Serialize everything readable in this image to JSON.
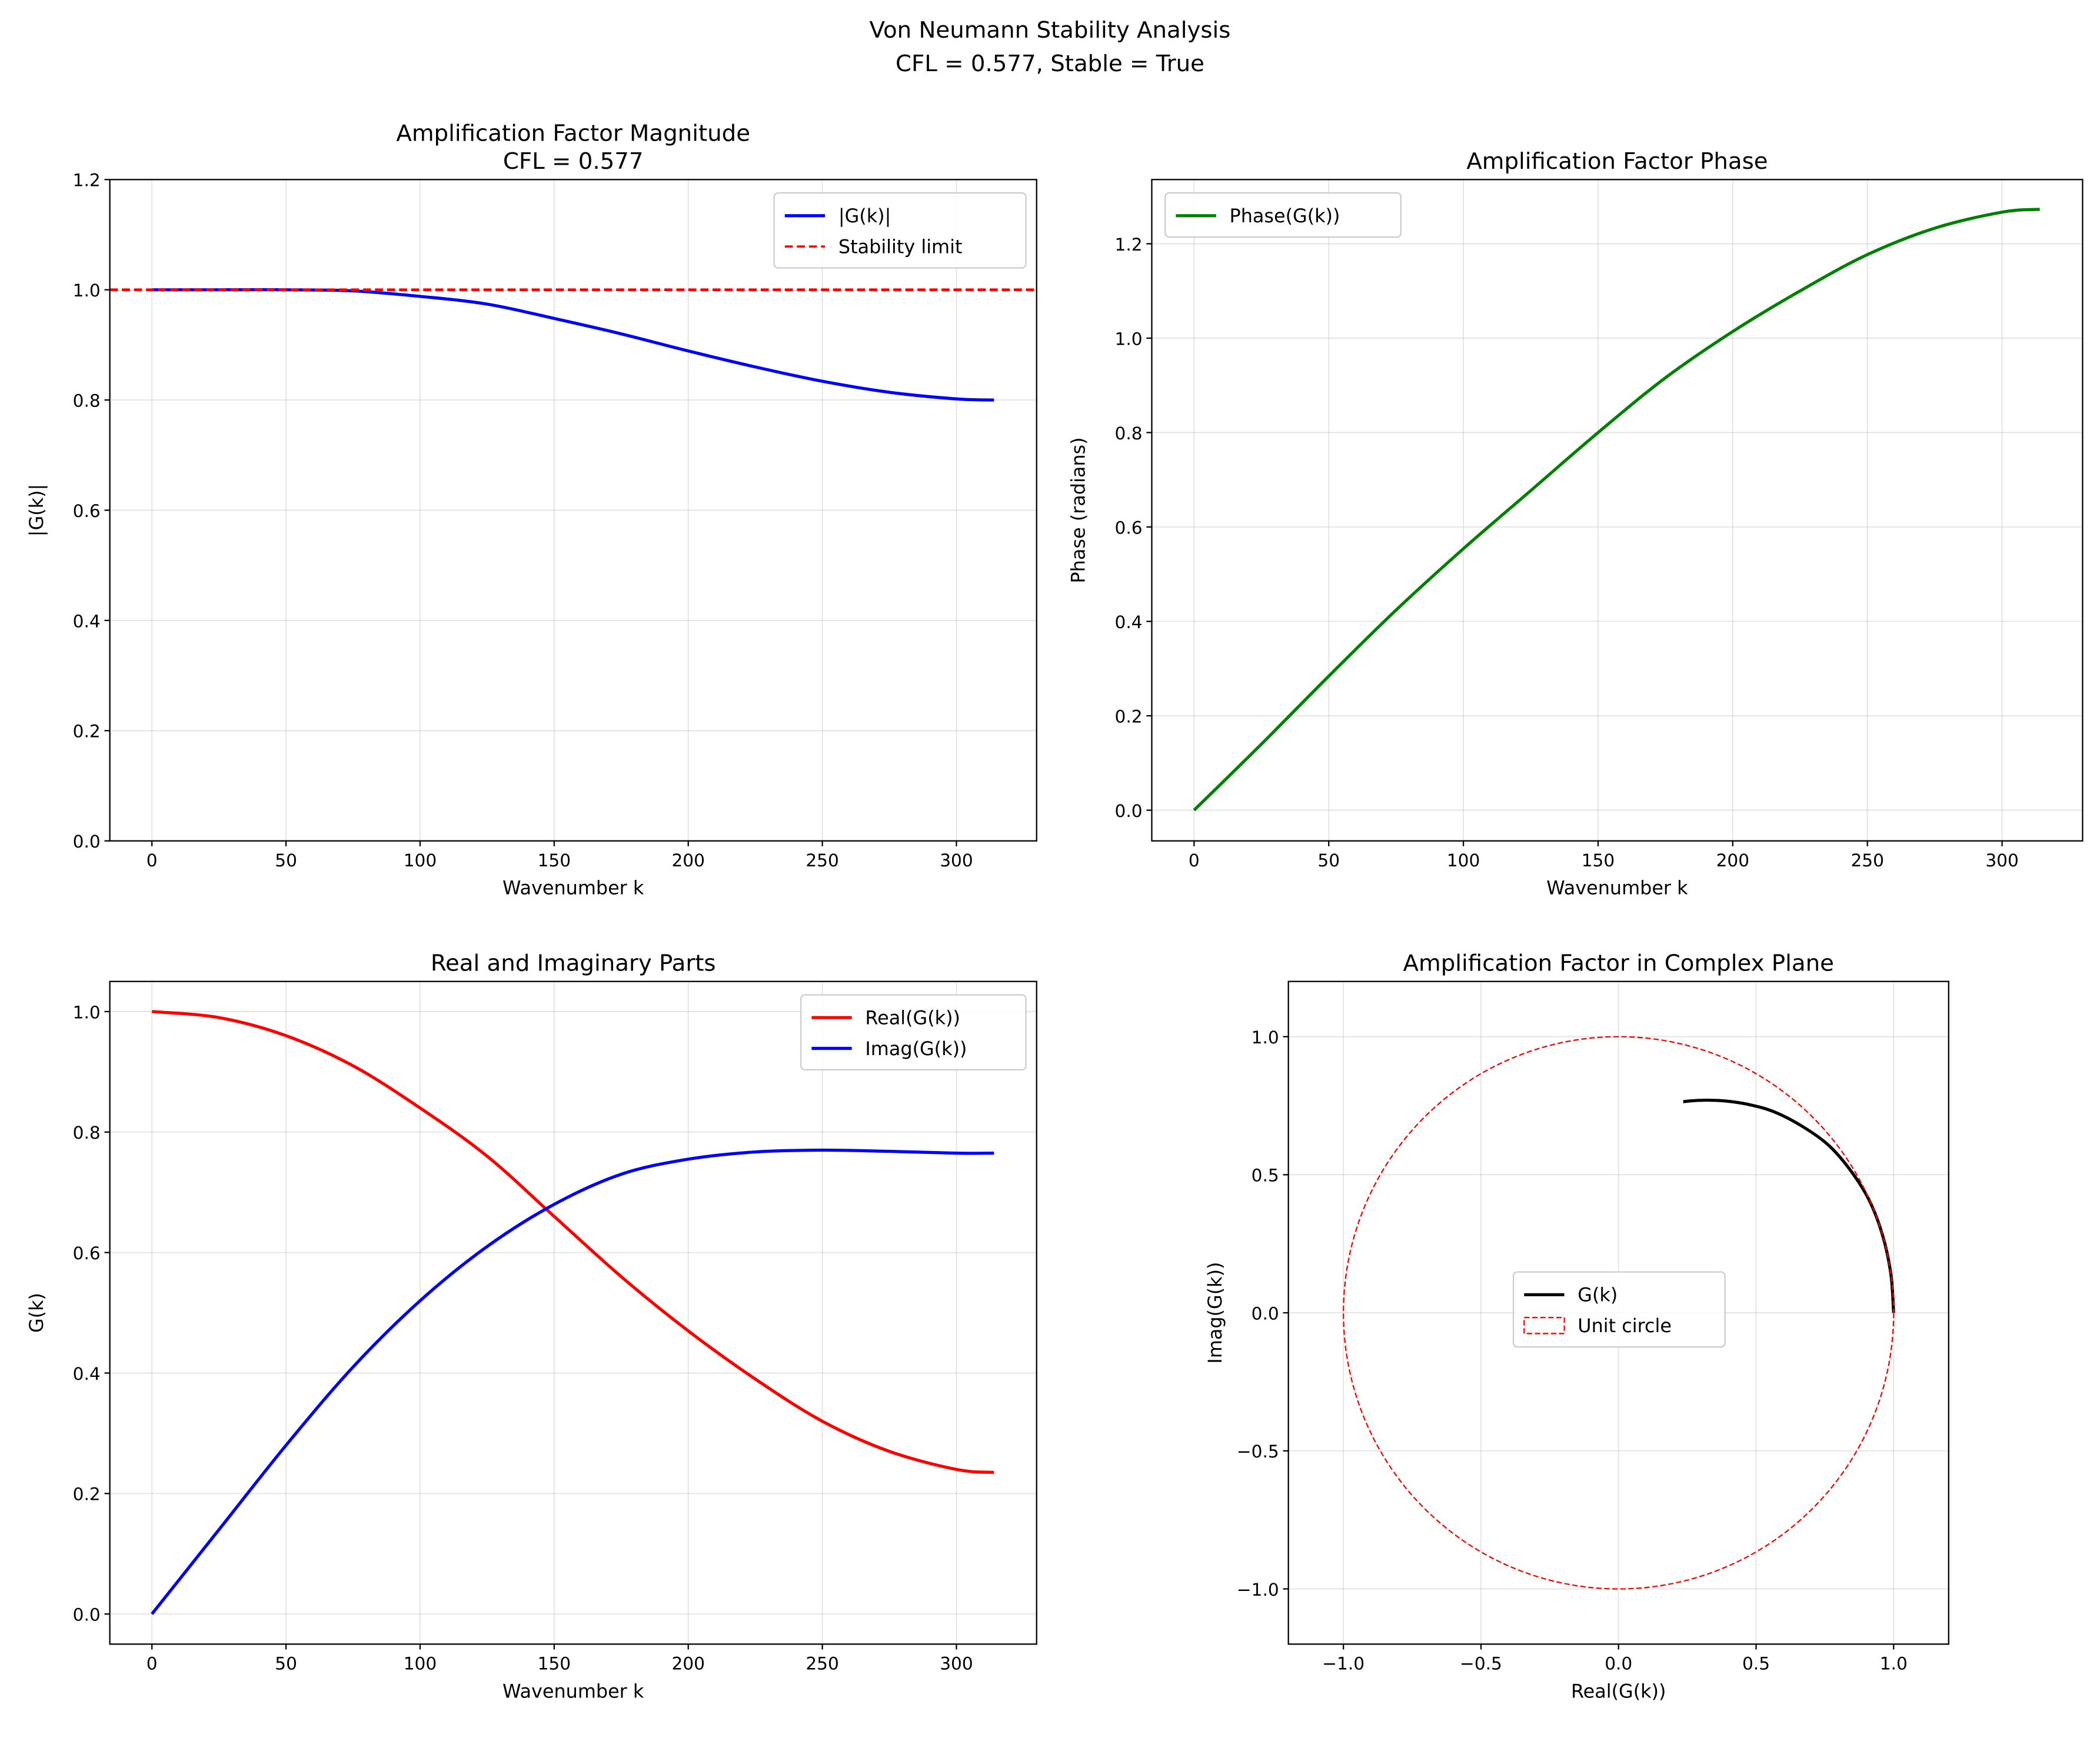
{
  "suptitle": [
    "Von Neumann Stability Analysis",
    "CFL = 0.577, Stable = True"
  ],
  "chart_data": [
    {
      "type": "line",
      "title": [
        "Amplification Factor Magnitude",
        "CFL = 0.577"
      ],
      "xlabel": "Wavenumber k",
      "ylabel": "|G(k)|",
      "xlim": [
        -15.7,
        329.9
      ],
      "ylim": [
        0,
        1.2
      ],
      "xticks": [
        0,
        50,
        100,
        150,
        200,
        250,
        300
      ],
      "yticks": [
        0.0,
        0.2,
        0.4,
        0.6,
        0.8,
        1.0,
        1.2
      ],
      "grid": true,
      "legend": "top-right",
      "series": [
        {
          "name": "|G(k)|",
          "color": "#0000ff",
          "style": "solid",
          "x": [
            0,
            25,
            50,
            75,
            100,
            125,
            150,
            175,
            200,
            225,
            250,
            275,
            300,
            314
          ],
          "y": [
            1.0,
            1.0,
            1.0,
            0.998,
            0.988,
            0.974,
            0.948,
            0.92,
            0.889,
            0.86,
            0.834,
            0.814,
            0.802,
            0.8
          ]
        },
        {
          "name": "Stability limit",
          "color": "#ff0000",
          "style": "dashed",
          "hline": 1.0
        }
      ]
    },
    {
      "type": "line",
      "title": [
        "Amplification Factor Phase"
      ],
      "xlabel": "Wavenumber k",
      "ylabel": "Phase (radians)",
      "xlim": [
        -15.7,
        329.9
      ],
      "ylim": [
        -0.065,
        1.336
      ],
      "xticks": [
        0,
        50,
        100,
        150,
        200,
        250,
        300
      ],
      "yticks": [
        0.0,
        0.2,
        0.4,
        0.6,
        0.8,
        1.0,
        1.2
      ],
      "grid": true,
      "legend": "top-left",
      "series": [
        {
          "name": "Phase(G(k))",
          "color": "#008000",
          "style": "solid",
          "x": [
            0,
            25,
            50,
            75,
            100,
            125,
            150,
            175,
            200,
            225,
            250,
            275,
            300,
            314
          ],
          "y": [
            0,
            0.14,
            0.284,
            0.424,
            0.554,
            0.677,
            0.8,
            0.916,
            1.014,
            1.1,
            1.177,
            1.233,
            1.267,
            1.273
          ]
        }
      ]
    },
    {
      "type": "line",
      "title": [
        "Real and Imaginary Parts"
      ],
      "xlabel": "Wavenumber k",
      "ylabel": "G(k)",
      "xlim": [
        -15.7,
        329.9
      ],
      "ylim": [
        -0.05,
        1.05
      ],
      "xticks": [
        0,
        50,
        100,
        150,
        200,
        250,
        300
      ],
      "yticks": [
        0.0,
        0.2,
        0.4,
        0.6,
        0.8,
        1.0
      ],
      "grid": true,
      "legend": "top-right",
      "series": [
        {
          "name": "Real(G(k))",
          "color": "#ff0000",
          "style": "solid",
          "x": [
            0,
            25,
            50,
            75,
            100,
            125,
            150,
            175,
            200,
            225,
            250,
            275,
            300,
            314
          ],
          "y": [
            1.0,
            0.99,
            0.96,
            0.91,
            0.84,
            0.76,
            0.66,
            0.56,
            0.47,
            0.39,
            0.32,
            0.27,
            0.24,
            0.235
          ]
        },
        {
          "name": "Imag(G(k))",
          "color": "#0000ff",
          "style": "solid",
          "x": [
            0,
            25,
            50,
            75,
            100,
            125,
            150,
            175,
            200,
            225,
            250,
            275,
            300,
            314
          ],
          "y": [
            0,
            0.14,
            0.28,
            0.41,
            0.52,
            0.61,
            0.68,
            0.73,
            0.755,
            0.767,
            0.77,
            0.768,
            0.765,
            0.765
          ]
        }
      ]
    },
    {
      "type": "line",
      "title": [
        "Amplification Factor in Complex Plane"
      ],
      "xlabel": "Real(G(k))",
      "ylabel": "Imag(G(k))",
      "xlim": [
        -1.2,
        1.2
      ],
      "ylim": [
        -1.2,
        1.2
      ],
      "xticks": [
        -1.0,
        -0.5,
        0.0,
        0.5,
        1.0
      ],
      "yticks": [
        -1.0,
        -0.5,
        0.0,
        0.5,
        1.0
      ],
      "xticklabels": [
        "−1.0",
        "−0.5",
        "0.0",
        "0.5",
        "1.0"
      ],
      "yticklabels": [
        "−1.0",
        "−0.5",
        "0.0",
        "0.5",
        "1.0"
      ],
      "grid": true,
      "legend": "center",
      "series": [
        {
          "name": "G(k)",
          "color": "#000000",
          "style": "solid",
          "x": [
            1.0,
            0.99,
            0.96,
            0.91,
            0.84,
            0.76,
            0.66,
            0.56,
            0.47,
            0.39,
            0.32,
            0.27,
            0.24,
            0.235
          ],
          "y": [
            0,
            0.14,
            0.28,
            0.41,
            0.52,
            0.61,
            0.68,
            0.73,
            0.755,
            0.767,
            0.77,
            0.768,
            0.765,
            0.765
          ]
        },
        {
          "name": "Unit circle",
          "color": "#ff0000",
          "style": "dashed",
          "circle": 1.0
        }
      ]
    }
  ]
}
